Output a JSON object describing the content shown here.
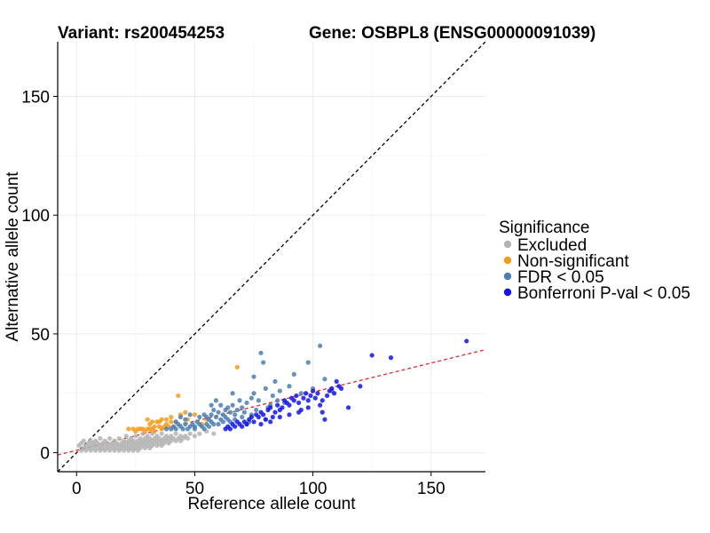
{
  "chart_data": {
    "type": "scatter",
    "title_left": "Variant: rs200454253",
    "title_right": "Gene: OSBPL8 (ENSG00000091039)",
    "xlabel": "Reference allele count",
    "ylabel": "Alternative allele count",
    "xlim": [
      -8,
      173
    ],
    "ylim": [
      -8,
      173
    ],
    "x_ticks": [
      0,
      50,
      100,
      150
    ],
    "y_ticks": [
      0,
      50,
      100,
      150
    ],
    "grid": true,
    "legend": {
      "title": "Significance",
      "position": "right",
      "entries": [
        {
          "label": "Excluded",
          "color": "#b3b3b3"
        },
        {
          "label": "Non-significant",
          "color": "#f59a1f"
        },
        {
          "label": "FDR < 0.05",
          "color": "#4a7fb0"
        },
        {
          "label": "Bonferroni P-val < 0.05",
          "color": "#1414e6"
        }
      ]
    },
    "reference_lines": [
      {
        "name": "identity",
        "slope": 1,
        "intercept": 0,
        "color": "#000000",
        "dash": true
      },
      {
        "name": "fit",
        "slope": 0.245,
        "intercept": 1,
        "color": "#e0282a",
        "dash": true
      }
    ],
    "series": [
      {
        "name": "Excluded",
        "color": "#b3b3b3",
        "points": [
          [
            1,
            3
          ],
          [
            2,
            1
          ],
          [
            2,
            4
          ],
          [
            3,
            2
          ],
          [
            3,
            5
          ],
          [
            4,
            1
          ],
          [
            4,
            3
          ],
          [
            5,
            2
          ],
          [
            5,
            4
          ],
          [
            6,
            1
          ],
          [
            6,
            3
          ],
          [
            6,
            5
          ],
          [
            7,
            2
          ],
          [
            7,
            4
          ],
          [
            8,
            1
          ],
          [
            8,
            3
          ],
          [
            8,
            5
          ],
          [
            9,
            2
          ],
          [
            9,
            4
          ],
          [
            10,
            1
          ],
          [
            10,
            3
          ],
          [
            10,
            6
          ],
          [
            11,
            2
          ],
          [
            11,
            4
          ],
          [
            12,
            1
          ],
          [
            12,
            3
          ],
          [
            12,
            5
          ],
          [
            13,
            2
          ],
          [
            13,
            4
          ],
          [
            14,
            1
          ],
          [
            14,
            3
          ],
          [
            14,
            6
          ],
          [
            15,
            2
          ],
          [
            15,
            4
          ],
          [
            16,
            1
          ],
          [
            16,
            3
          ],
          [
            16,
            5
          ],
          [
            17,
            2
          ],
          [
            17,
            4
          ],
          [
            18,
            1
          ],
          [
            18,
            3
          ],
          [
            18,
            6
          ],
          [
            19,
            2
          ],
          [
            19,
            4
          ],
          [
            20,
            1
          ],
          [
            20,
            3
          ],
          [
            20,
            5
          ],
          [
            21,
            2
          ],
          [
            21,
            4
          ],
          [
            21,
            7
          ],
          [
            22,
            1
          ],
          [
            22,
            3
          ],
          [
            22,
            5
          ],
          [
            23,
            2
          ],
          [
            23,
            4
          ],
          [
            23,
            6
          ],
          [
            24,
            1
          ],
          [
            24,
            3
          ],
          [
            24,
            5
          ],
          [
            25,
            2
          ],
          [
            25,
            4
          ],
          [
            25,
            7
          ],
          [
            26,
            1
          ],
          [
            26,
            3
          ],
          [
            26,
            5
          ],
          [
            27,
            2
          ],
          [
            27,
            4
          ],
          [
            27,
            6
          ],
          [
            28,
            3
          ],
          [
            28,
            5
          ],
          [
            28,
            8
          ],
          [
            29,
            2
          ],
          [
            29,
            4
          ],
          [
            29,
            6
          ],
          [
            30,
            3
          ],
          [
            30,
            5
          ],
          [
            30,
            7
          ],
          [
            31,
            2
          ],
          [
            31,
            4
          ],
          [
            31,
            6
          ],
          [
            32,
            3
          ],
          [
            32,
            5
          ],
          [
            32,
            8
          ],
          [
            33,
            4
          ],
          [
            33,
            6
          ],
          [
            34,
            3
          ],
          [
            34,
            5
          ],
          [
            34,
            7
          ],
          [
            35,
            4
          ],
          [
            35,
            6
          ],
          [
            36,
            3
          ],
          [
            36,
            5
          ],
          [
            36,
            8
          ],
          [
            37,
            4
          ],
          [
            37,
            6
          ],
          [
            38,
            5
          ],
          [
            38,
            7
          ],
          [
            39,
            4
          ],
          [
            39,
            6
          ],
          [
            40,
            5
          ],
          [
            40,
            7
          ],
          [
            41,
            6
          ],
          [
            42,
            5
          ],
          [
            42,
            8
          ],
          [
            43,
            6
          ],
          [
            44,
            5
          ],
          [
            44,
            7
          ],
          [
            45,
            6
          ],
          [
            46,
            7
          ],
          [
            47,
            6
          ],
          [
            48,
            8
          ],
          [
            50,
            7
          ],
          [
            52,
            8
          ],
          [
            55,
            9
          ],
          [
            58,
            8
          ]
        ]
      },
      {
        "name": "Non-significant",
        "color": "#f59a1f",
        "points": [
          [
            22,
            10
          ],
          [
            24,
            10
          ],
          [
            25,
            9
          ],
          [
            26,
            10
          ],
          [
            27,
            10
          ],
          [
            28,
            10
          ],
          [
            29,
            9
          ],
          [
            30,
            10
          ],
          [
            31,
            12
          ],
          [
            31,
            10
          ],
          [
            32,
            10
          ],
          [
            33,
            9
          ],
          [
            30,
            14
          ],
          [
            32,
            13
          ],
          [
            34,
            13
          ],
          [
            33,
            11
          ],
          [
            35,
            11
          ],
          [
            36,
            10
          ],
          [
            35,
            13
          ],
          [
            36,
            14
          ],
          [
            37,
            11
          ],
          [
            38,
            12
          ],
          [
            39,
            11
          ],
          [
            40,
            13
          ],
          [
            40,
            15
          ],
          [
            42,
            13
          ],
          [
            43,
            24
          ],
          [
            46,
            17
          ],
          [
            47,
            14
          ],
          [
            50,
            16
          ],
          [
            53,
            12
          ],
          [
            55,
            14
          ],
          [
            68,
            36
          ],
          [
            44,
            16
          ],
          [
            38,
            14
          ]
        ]
      },
      {
        "name": "FDR < 0.05",
        "color": "#4a7fb0",
        "points": [
          [
            38,
            10
          ],
          [
            40,
            10
          ],
          [
            41,
            11
          ],
          [
            42,
            10
          ],
          [
            43,
            12
          ],
          [
            44,
            11
          ],
          [
            45,
            10
          ],
          [
            46,
            12
          ],
          [
            47,
            10
          ],
          [
            48,
            11
          ],
          [
            49,
            12
          ],
          [
            50,
            10
          ],
          [
            50,
            11
          ],
          [
            51,
            13
          ],
          [
            52,
            12
          ],
          [
            53,
            11
          ],
          [
            54,
            10
          ],
          [
            55,
            12
          ],
          [
            55,
            15
          ],
          [
            56,
            11
          ],
          [
            56,
            14
          ],
          [
            57,
            13
          ],
          [
            57,
            16
          ],
          [
            58,
            12
          ],
          [
            58,
            18
          ],
          [
            59,
            15
          ],
          [
            60,
            12
          ],
          [
            60,
            17
          ],
          [
            61,
            14
          ],
          [
            61,
            20
          ],
          [
            62,
            16
          ],
          [
            62,
            13
          ],
          [
            63,
            15
          ],
          [
            63,
            18
          ],
          [
            64,
            14
          ],
          [
            64,
            19
          ],
          [
            65,
            17
          ],
          [
            65,
            13
          ],
          [
            66,
            20
          ],
          [
            67,
            16
          ],
          [
            67,
            14
          ],
          [
            68,
            18
          ],
          [
            69,
            22
          ],
          [
            70,
            19
          ],
          [
            70,
            15
          ],
          [
            71,
            17
          ],
          [
            72,
            21
          ],
          [
            72,
            12
          ],
          [
            73,
            13
          ],
          [
            74,
            16
          ],
          [
            75,
            25
          ],
          [
            75,
            32
          ],
          [
            76,
            18
          ],
          [
            77,
            22
          ],
          [
            78,
            42
          ],
          [
            79,
            38
          ],
          [
            80,
            14
          ],
          [
            80,
            27
          ],
          [
            81,
            19
          ],
          [
            82,
            20
          ],
          [
            83,
            24
          ],
          [
            84,
            30
          ],
          [
            85,
            22
          ],
          [
            86,
            26
          ],
          [
            88,
            21
          ],
          [
            90,
            28
          ],
          [
            92,
            33
          ],
          [
            95,
            25
          ],
          [
            98,
            38
          ],
          [
            100,
            27
          ],
          [
            103,
            45
          ],
          [
            105,
            31
          ],
          [
            108,
            26
          ],
          [
            42,
            13
          ],
          [
            44,
            15
          ],
          [
            46,
            14
          ],
          [
            48,
            16
          ],
          [
            52,
            15
          ],
          [
            54,
            16
          ],
          [
            57,
            20
          ],
          [
            59,
            22
          ],
          [
            66,
            25
          ],
          [
            74,
            23
          ]
        ]
      },
      {
        "name": "Bonferroni P-val < 0.05",
        "color": "#1414e6",
        "points": [
          [
            63,
            10
          ],
          [
            64,
            11
          ],
          [
            65,
            10
          ],
          [
            66,
            12
          ],
          [
            67,
            11
          ],
          [
            68,
            13
          ],
          [
            69,
            12
          ],
          [
            70,
            11
          ],
          [
            71,
            13
          ],
          [
            72,
            12
          ],
          [
            73,
            14
          ],
          [
            74,
            15
          ],
          [
            75,
            13
          ],
          [
            76,
            16
          ],
          [
            77,
            15
          ],
          [
            78,
            17
          ],
          [
            79,
            16
          ],
          [
            80,
            14
          ],
          [
            81,
            18
          ],
          [
            82,
            19
          ],
          [
            83,
            15
          ],
          [
            84,
            17
          ],
          [
            85,
            20
          ],
          [
            86,
            18
          ],
          [
            87,
            19
          ],
          [
            88,
            22
          ],
          [
            89,
            21
          ],
          [
            90,
            20
          ],
          [
            91,
            23
          ],
          [
            92,
            22
          ],
          [
            93,
            24
          ],
          [
            94,
            21
          ],
          [
            95,
            18
          ],
          [
            96,
            23
          ],
          [
            97,
            25
          ],
          [
            98,
            22
          ],
          [
            99,
            24
          ],
          [
            100,
            26
          ],
          [
            101,
            23
          ],
          [
            102,
            25
          ],
          [
            103,
            20
          ],
          [
            104,
            22
          ],
          [
            105,
            14
          ],
          [
            106,
            24
          ],
          [
            107,
            26
          ],
          [
            108,
            27
          ],
          [
            109,
            25
          ],
          [
            110,
            30
          ],
          [
            111,
            28
          ],
          [
            112,
            27
          ],
          [
            115,
            19
          ],
          [
            120,
            28
          ],
          [
            125,
            41
          ],
          [
            133,
            40
          ],
          [
            165,
            47
          ],
          [
            78,
            12
          ],
          [
            82,
            13
          ],
          [
            86,
            15
          ],
          [
            90,
            16
          ],
          [
            94,
            17
          ],
          [
            98,
            19
          ],
          [
            104,
            17
          ]
        ]
      }
    ]
  }
}
